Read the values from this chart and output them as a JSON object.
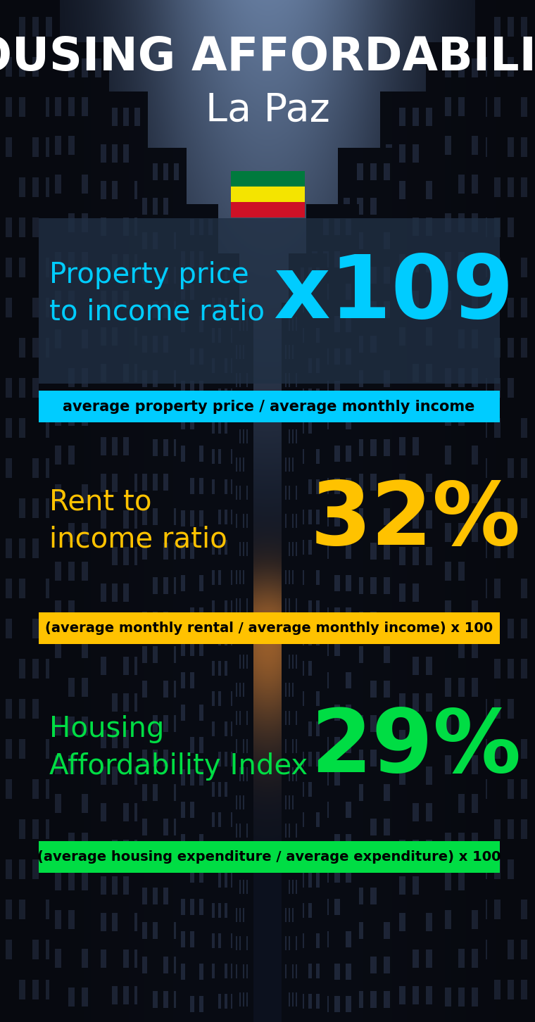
{
  "title_line1": "HOUSING AFFORDABILITY",
  "title_line2": "La Paz",
  "background_color": "#080e18",
  "title_color": "#ffffff",
  "city_color": "#ffffff",
  "metric1_label": "Property price\nto income ratio",
  "metric1_value": "x109",
  "metric1_label_color": "#00ccff",
  "metric1_value_color": "#00ccff",
  "metric1_band_color": "#00ccff",
  "metric1_band_text": "average property price / average monthly income",
  "metric2_label": "Rent to\nincome ratio",
  "metric2_value": "32%",
  "metric2_label_color": "#ffc200",
  "metric2_value_color": "#ffc200",
  "metric2_band_color": "#ffc200",
  "metric2_band_text": "(average monthly rental / average monthly income) x 100",
  "metric3_label": "Housing\nAffordability Index",
  "metric3_value": "29%",
  "metric3_label_color": "#00dd44",
  "metric3_value_color": "#00dd44",
  "metric3_band_color": "#00dd44",
  "metric3_band_text": "(average housing expenditure / average expenditure) x 100",
  "band_text_color": "#000000",
  "figsize": [
    7.6,
    14.52
  ],
  "dpi": 100
}
